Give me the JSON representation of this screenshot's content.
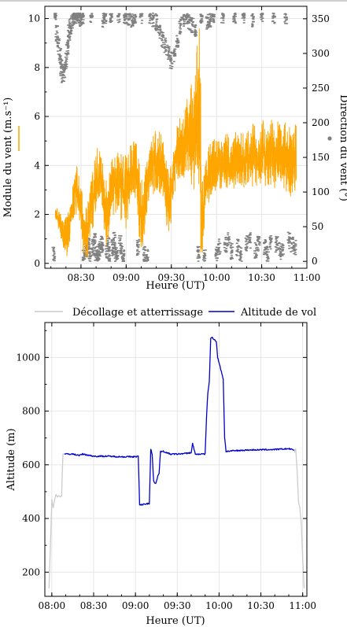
{
  "colors": {
    "wind_speed": "#FFA500",
    "wind_direction": "#808080",
    "flight_altitude": "#0000CC",
    "takeoff_landing": "#CCCCCC",
    "grid": "#E6E6E6"
  },
  "chart_data": [
    {
      "type": "line",
      "xlabel": "Heure (UT)",
      "ylabel": "Module du vent (m.s⁻¹)",
      "ylabel_right": "Direction du vent (°)",
      "xticks": [
        "08:30",
        "09:00",
        "09:30",
        "10:00",
        "10:30",
        "11:00"
      ],
      "yticks": [
        "0",
        "2",
        "4",
        "6",
        "8",
        "10"
      ],
      "yticks_right": [
        "0",
        "50",
        "100",
        "150",
        "200",
        "250",
        "300",
        "350"
      ],
      "xlim": [
        "08:06",
        "11:00"
      ],
      "ylim": [
        -0.2,
        10.5
      ],
      "ylim_right": [
        -10,
        368
      ],
      "grid": true,
      "series": [
        {
          "axis": "left",
          "style": "line",
          "x": [
            "08:13",
            "08:15",
            "08:17",
            "08:19",
            "08:21",
            "08:23",
            "08:25",
            "08:27",
            "08:29",
            "08:31",
            "08:33",
            "08:35",
            "08:37",
            "08:39",
            "08:41",
            "08:43",
            "08:45",
            "08:47",
            "08:49",
            "08:51",
            "08:53",
            "08:55",
            "08:57",
            "08:59",
            "09:01",
            "09:03",
            "09:05",
            "09:07",
            "09:09",
            "09:11",
            "09:13",
            "09:15",
            "09:17",
            "09:19",
            "09:21",
            "09:23",
            "09:25",
            "09:27",
            "09:29",
            "09:31",
            "09:33",
            "09:35",
            "09:37",
            "09:39",
            "09:41",
            "09:43",
            "09:45",
            "09:47",
            "09:49",
            "09:50",
            "09:51",
            "09:52",
            "09:53",
            "09:55",
            "09:57",
            "09:59",
            "10:01",
            "10:03",
            "10:05",
            "10:07",
            "10:09",
            "10:11",
            "10:13",
            "10:15",
            "10:17",
            "10:19",
            "10:21",
            "10:23",
            "10:25",
            "10:27",
            "10:29",
            "10:31",
            "10:33",
            "10:35",
            "10:37",
            "10:39",
            "10:41",
            "10:43",
            "10:45",
            "10:47",
            "10:49",
            "10:51",
            "10:53"
          ],
          "low": [
            1.8,
            1.4,
            0.9,
            0.5,
            0.2,
            1.0,
            1.8,
            2.0,
            1.5,
            0.4,
            0.1,
            0.2,
            1.0,
            1.8,
            2.0,
            2.5,
            1.5,
            0.6,
            1.2,
            1.8,
            2.0,
            2.2,
            1.5,
            1.0,
            1.8,
            2.6,
            2.8,
            2.5,
            0.8,
            0.2,
            1.5,
            2.5,
            2.7,
            2.9,
            3.0,
            2.8,
            2.5,
            1.5,
            0.8,
            2.6,
            3.0,
            3.3,
            3.5,
            3.5,
            3.6,
            3.2,
            3.0,
            2.8,
            0.5,
            0.1,
            0.3,
            1.5,
            2.3,
            2.5,
            2.8,
            2.9,
            3.0,
            2.9,
            3.1,
            3.0,
            3.2,
            3.0,
            3.0,
            3.2,
            3.0,
            3.1,
            3.0,
            3.2,
            3.0,
            3.1,
            3.2,
            3.0,
            3.1,
            3.0,
            2.9,
            3.0,
            3.2,
            3.1,
            2.8,
            2.7,
            2.7,
            2.9,
            3.0
          ],
          "high": [
            2.3,
            2.2,
            2.0,
            1.8,
            2.0,
            2.4,
            3.4,
            4.0,
            3.8,
            2.8,
            2.2,
            3.0,
            3.6,
            4.2,
            4.8,
            4.5,
            4.0,
            3.6,
            3.8,
            4.4,
            4.6,
            4.8,
            4.5,
            4.7,
            4.8,
            4.9,
            5.0,
            4.9,
            4.0,
            3.2,
            4.0,
            4.8,
            5.2,
            5.4,
            5.5,
            5.3,
            5.0,
            4.4,
            3.8,
            4.6,
            5.6,
            6.0,
            5.8,
            6.4,
            7.0,
            7.3,
            7.5,
            9.4,
            10.2,
            4.6,
            3.2,
            4.0,
            4.5,
            4.8,
            5.0,
            5.2,
            5.0,
            5.1,
            5.2,
            5.4,
            5.0,
            5.3,
            5.6,
            5.2,
            5.5,
            5.0,
            5.7,
            5.4,
            6.0,
            5.3,
            5.5,
            6.2,
            5.4,
            5.8,
            6.0,
            5.4,
            6.1,
            5.6,
            5.8,
            6.0,
            5.5,
            5.7,
            5.8
          ]
        },
        {
          "axis": "right",
          "style": "scatter",
          "x": [
            "08:12",
            "08:13",
            "08:14",
            "08:15",
            "08:16",
            "08:17",
            "08:18",
            "08:19",
            "08:20",
            "08:21",
            "08:22",
            "08:23",
            "08:24",
            "08:25",
            "08:26",
            "08:27",
            "08:28",
            "08:29",
            "08:30",
            "08:31",
            "08:32",
            "08:33",
            "08:34",
            "08:35",
            "08:36",
            "08:37",
            "08:38",
            "08:39",
            "08:40",
            "08:41",
            "08:42",
            "08:43",
            "08:44",
            "08:45",
            "08:46",
            "08:47",
            "08:48",
            "08:49",
            "08:50",
            "08:51",
            "08:52",
            "08:53",
            "08:54",
            "08:55",
            "08:56",
            "08:57",
            "08:58",
            "08:59",
            "09:00",
            "09:02",
            "09:04",
            "09:06",
            "09:08",
            "09:10",
            "09:12",
            "09:14",
            "09:16",
            "09:18",
            "09:20",
            "09:22",
            "09:24",
            "09:26",
            "09:28",
            "09:30",
            "09:32",
            "09:34",
            "09:36",
            "09:38",
            "09:40",
            "09:42",
            "09:44",
            "09:46",
            "09:48",
            "09:50",
            "09:52",
            "09:54",
            "09:56",
            "09:58",
            "10:00",
            "10:02",
            "10:04",
            "10:06",
            "10:08",
            "10:10",
            "10:12",
            "10:14",
            "10:16",
            "10:18",
            "10:20",
            "10:22",
            "10:24",
            "10:26",
            "10:28",
            "10:30",
            "10:32",
            "10:34",
            "10:36",
            "10:38",
            "10:40",
            "10:42",
            "10:44",
            "10:46",
            "10:48",
            "10:50",
            "10:52"
          ],
          "y": [
            10,
            355,
            330,
            310,
            295,
            280,
            270,
            275,
            290,
            310,
            330,
            340,
            345,
            350,
            355,
            355,
            358,
            355,
            350,
            355,
            5,
            15,
            20,
            25,
            10,
            355,
            20,
            30,
            10,
            5,
            15,
            20,
            25,
            350,
            355,
            15,
            25,
            10,
            355,
            20,
            30,
            10,
            5,
            355,
            25,
            15,
            5,
            355,
            355,
            350,
            345,
            355,
            20,
            355,
            10,
            5,
            355,
            350,
            345,
            330,
            320,
            310,
            300,
            290,
            300,
            320,
            340,
            350,
            355,
            345,
            340,
            330,
            10,
            355,
            5,
            345,
            350,
            355,
            10,
            20,
            355,
            25,
            30,
            15,
            355,
            20,
            10,
            355,
            25,
            30,
            350,
            15,
            25,
            355,
            20,
            10,
            30,
            355,
            25,
            15,
            20,
            355,
            30,
            25,
            20
          ]
        }
      ]
    },
    {
      "type": "line",
      "xlabel": "Heure (UT)",
      "ylabel": "Altitude (m)",
      "xticks": [
        "08:00",
        "08:30",
        "09:00",
        "09:30",
        "10:00",
        "10:30",
        "11:00"
      ],
      "yticks": [
        "200",
        "400",
        "600",
        "800",
        "1000"
      ],
      "xlim": [
        "07:55",
        "11:03"
      ],
      "ylim": [
        110,
        1130
      ],
      "legend_position": "top",
      "grid": true,
      "series": [
        {
          "name": "Décollage et atterrissage",
          "x": [
            "07:58",
            "07:59",
            "08:00",
            "08:01",
            "08:02",
            "08:03",
            "08:04",
            "08:05",
            "08:06",
            "08:07",
            "08:08",
            "08:09",
            "10:54",
            "10:55",
            "10:56",
            "10:57",
            "10:58",
            "10:59",
            "11:00",
            "11:01"
          ],
          "y": [
            140,
            300,
            470,
            440,
            470,
            490,
            480,
            485,
            480,
            485,
            640,
            640,
            645,
            660,
            580,
            460,
            440,
            380,
            250,
            140
          ]
        },
        {
          "name": "Altitude de vol",
          "x": [
            "08:09",
            "08:15",
            "08:20",
            "08:22",
            "08:30",
            "08:40",
            "08:50",
            "09:00",
            "09:02",
            "09:03",
            "09:05",
            "09:08",
            "09:10",
            "09:11",
            "09:12",
            "09:13",
            "09:14",
            "09:15",
            "09:16",
            "09:17",
            "09:18",
            "09:19",
            "09:20",
            "09:25",
            "09:30",
            "09:35",
            "09:40",
            "09:41",
            "09:42",
            "09:43",
            "09:45",
            "09:50",
            "09:51",
            "09:52",
            "09:53",
            "09:54",
            "09:55",
            "09:56",
            "09:57",
            "09:58",
            "09:59",
            "10:00",
            "10:01",
            "10:02",
            "10:03",
            "10:04",
            "10:05",
            "10:10",
            "10:20",
            "10:30",
            "10:40",
            "10:50",
            "10:54"
          ],
          "y": [
            640,
            640,
            635,
            640,
            632,
            632,
            630,
            630,
            632,
            450,
            452,
            455,
            455,
            660,
            640,
            540,
            530,
            535,
            560,
            570,
            650,
            648,
            650,
            640,
            640,
            642,
            645,
            680,
            660,
            638,
            640,
            640,
            780,
            870,
            910,
            1070,
            1075,
            1070,
            1065,
            1060,
            1000,
            980,
            960,
            940,
            920,
            700,
            650,
            652,
            655,
            656,
            657,
            660,
            655
          ]
        }
      ]
    }
  ]
}
